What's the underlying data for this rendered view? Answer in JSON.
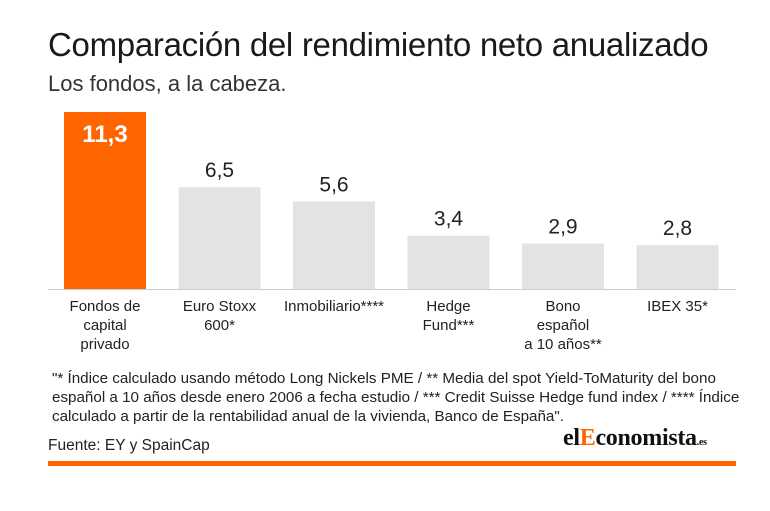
{
  "title": "Comparación del rendimiento neto anualizado",
  "subtitle": "Los fondos, a la cabeza.",
  "chart_data": {
    "type": "bar",
    "categories": [
      [
        "Fondos de",
        "capital",
        "privado"
      ],
      [
        "Euro Stoxx",
        "600*"
      ],
      [
        "Inmobiliario****"
      ],
      [
        "Hedge",
        "Fund***"
      ],
      [
        "Bono",
        "español",
        "a 10 años**"
      ],
      [
        "IBEX 35*"
      ]
    ],
    "values": [
      11.3,
      6.5,
      5.6,
      3.4,
      2.9,
      2.8
    ],
    "value_labels": [
      "11,3",
      "6,5",
      "5,6",
      "3,4",
      "2,9",
      "2,8"
    ],
    "highlight_index": 0,
    "colors": {
      "highlight": "#ff6600",
      "default": "#e3e3e3",
      "baseline": "#cccccc"
    },
    "ylim": [
      0,
      11.3
    ],
    "grid": false,
    "legend": "none"
  },
  "note": "\"* Índice calculado usando método Long Nickels PME / ** Media del spot Yield-ToMaturity del bono español a 10 años desde enero 2006 a fecha estudio / *** Credit Suisse Hedge fund index / **** Índice calculado a partir de la rentabilidad anual de la vivienda, Banco de España\".",
  "source": "Fuente: EY y SpainCap",
  "logo": {
    "part1": "el",
    "part2": "E",
    "part3": "conomista",
    "suffix": ".es"
  }
}
